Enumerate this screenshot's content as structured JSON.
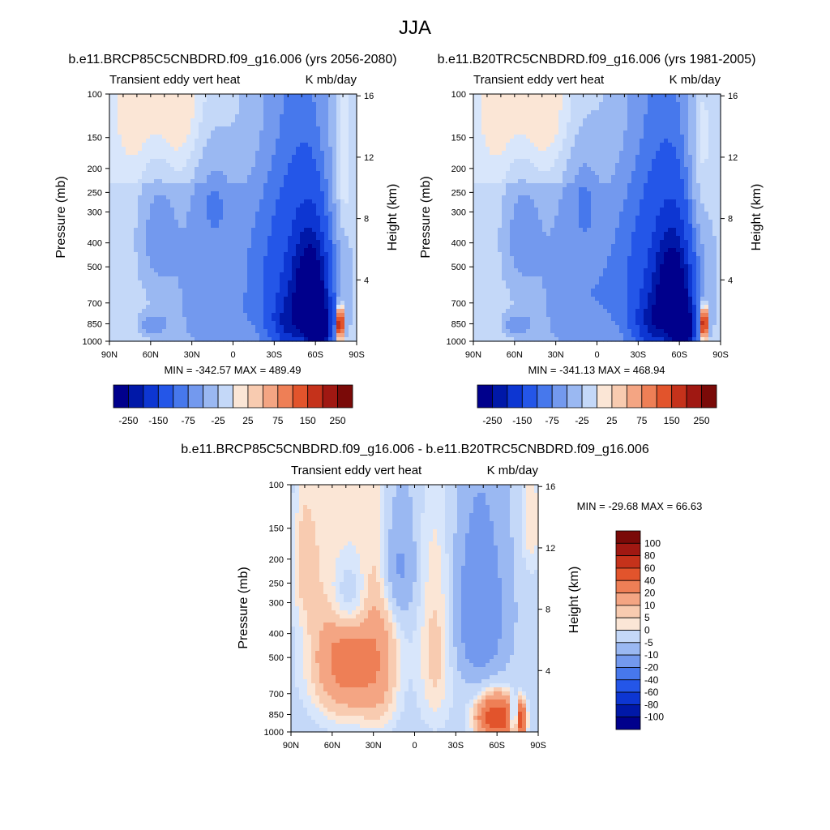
{
  "page_title": "JJA",
  "colors": {
    "ramp": [
      "#00008c",
      "#0018a8",
      "#0d36d2",
      "#2456e8",
      "#4778ec",
      "#7399ee",
      "#9ab8f2",
      "#c4d8f8",
      "#d8e6fb",
      "#fbe6d6",
      "#f8cbb0",
      "#f4a583",
      "#ee7f56",
      "#e2542c",
      "#c5321b",
      "#a01812",
      "#7a0a08"
    ],
    "neutral_light_blue": "#d7e6fb",
    "neutral_light_orange": "#fce5d5"
  },
  "chart_data": [
    {
      "id": "panel-a",
      "type": "heatmap",
      "title": "b.e11.BRCP85C5CNBDRD.f09_g16.006 (yrs 2056-2080)",
      "left_string": "Transient eddy vert heat",
      "right_string": "K mb/day",
      "ylabel": "Pressure (mb)",
      "ylabel_right": "Height (km)",
      "x_tick_labels": [
        "90N",
        "60N",
        "30N",
        "0",
        "30S",
        "60S",
        "90S"
      ],
      "x_range": [
        90,
        -90
      ],
      "y_ticks": [
        100,
        150,
        200,
        250,
        300,
        400,
        500,
        700,
        850,
        1000
      ],
      "y_tick_labels": [
        "100",
        "150",
        "200",
        "250",
        "300",
        "400",
        "500",
        "700",
        "850",
        "1000"
      ],
      "y_range": [
        1000,
        100
      ],
      "height_ticks": [
        4,
        8,
        12,
        16
      ],
      "height_tick_labels": [
        "4",
        "8",
        "12",
        "16"
      ],
      "stats_text": "MIN = -342.57  MAX = 489.49",
      "min": -342.57,
      "max": 489.49,
      "colorbar_labels": [
        "-250",
        "-150",
        "-75",
        "-25",
        "25",
        "75",
        "150",
        "250"
      ],
      "features": [
        {
          "lat": 12,
          "p": 650,
          "value": -60,
          "sx": 26,
          "sy": 480
        },
        {
          "lat": -45,
          "p": 560,
          "value": -120,
          "sx": 20,
          "sy": 420
        },
        {
          "lat": -57,
          "p": 620,
          "value": -230,
          "sx": 9,
          "sy": 210
        },
        {
          "lat": -62,
          "p": 900,
          "value": -290,
          "sx": 6,
          "sy": 130
        },
        {
          "lat": -40,
          "p": 860,
          "value": -100,
          "sx": 9,
          "sy": 150
        },
        {
          "lat": 55,
          "p": 380,
          "value": -45,
          "sx": 9,
          "sy": 140
        },
        {
          "lat": 63,
          "p": 860,
          "value": -45,
          "sx": 4,
          "sy": 55
        },
        {
          "lat": 54,
          "p": 860,
          "value": -45,
          "sx": 4,
          "sy": 55
        },
        {
          "lat": 15,
          "p": 245,
          "value": -25,
          "sx": 9,
          "sy": 90
        },
        {
          "lat": -78,
          "p": 850,
          "value": 240,
          "sx": 1.6,
          "sy": 90
        },
        {
          "lat": -5,
          "p": 520,
          "value": 14,
          "sx": 3,
          "sy": 110
        },
        {
          "lat": 30,
          "p": 120,
          "value": 24,
          "sx": 38,
          "sy": 70
        },
        {
          "lat": -80,
          "p": 200,
          "value": 30,
          "sx": 4,
          "sy": 120
        }
      ]
    },
    {
      "id": "panel-b",
      "type": "heatmap",
      "title": "b.e11.B20TRC5CNBDRD.f09_g16.006 (yrs 1981-2005)",
      "left_string": "Transient eddy vert heat",
      "right_string": "K mb/day",
      "ylabel": "Pressure (mb)",
      "ylabel_right": "Height (km)",
      "x_tick_labels": [
        "90N",
        "60N",
        "30N",
        "0",
        "30S",
        "60S",
        "90S"
      ],
      "x_range": [
        90,
        -90
      ],
      "y_ticks": [
        100,
        150,
        200,
        250,
        300,
        400,
        500,
        700,
        850,
        1000
      ],
      "y_tick_labels": [
        "100",
        "150",
        "200",
        "250",
        "300",
        "400",
        "500",
        "700",
        "850",
        "1000"
      ],
      "y_range": [
        1000,
        100
      ],
      "height_ticks": [
        4,
        8,
        12,
        16
      ],
      "height_tick_labels": [
        "4",
        "8",
        "12",
        "16"
      ],
      "stats_text": "MIN = -341.13  MAX = 468.94",
      "min": -341.13,
      "max": 468.94,
      "colorbar_labels": [
        "-250",
        "-150",
        "-75",
        "-25",
        "25",
        "75",
        "150",
        "250"
      ],
      "features": [
        {
          "lat": 12,
          "p": 650,
          "value": -60,
          "sx": 26,
          "sy": 480
        },
        {
          "lat": -45,
          "p": 560,
          "value": -120,
          "sx": 20,
          "sy": 420
        },
        {
          "lat": -56,
          "p": 640,
          "value": -230,
          "sx": 9,
          "sy": 220
        },
        {
          "lat": -62,
          "p": 900,
          "value": -280,
          "sx": 6,
          "sy": 130
        },
        {
          "lat": -40,
          "p": 860,
          "value": -100,
          "sx": 9,
          "sy": 150
        },
        {
          "lat": 55,
          "p": 380,
          "value": -45,
          "sx": 9,
          "sy": 140
        },
        {
          "lat": 63,
          "p": 860,
          "value": -45,
          "sx": 4,
          "sy": 55
        },
        {
          "lat": 54,
          "p": 860,
          "value": -45,
          "sx": 4,
          "sy": 55
        },
        {
          "lat": 10,
          "p": 240,
          "value": -25,
          "sx": 8,
          "sy": 90
        },
        {
          "lat": -78,
          "p": 850,
          "value": 230,
          "sx": 1.6,
          "sy": 90
        },
        {
          "lat": 30,
          "p": 120,
          "value": 24,
          "sx": 38,
          "sy": 70
        },
        {
          "lat": -75,
          "p": 180,
          "value": 28,
          "sx": 6,
          "sy": 110
        }
      ]
    },
    {
      "id": "panel-diff",
      "type": "heatmap",
      "title": "b.e11.BRCP85C5CNBDRD.f09_g16.006 - b.e11.B20TRC5CNBDRD.f09_g16.006",
      "left_string": "Transient eddy vert heat",
      "right_string": "K mb/day",
      "ylabel": "Pressure (mb)",
      "ylabel_right": "Height (km)",
      "x_tick_labels": [
        "90N",
        "60N",
        "30N",
        "0",
        "30S",
        "60S",
        "90S"
      ],
      "x_range": [
        90,
        -90
      ],
      "y_ticks": [
        100,
        150,
        200,
        250,
        300,
        400,
        500,
        700,
        850,
        1000
      ],
      "y_tick_labels": [
        "100",
        "150",
        "200",
        "250",
        "300",
        "400",
        "500",
        "700",
        "850",
        "1000"
      ],
      "y_range": [
        1000,
        100
      ],
      "height_ticks": [
        4,
        8,
        12,
        16
      ],
      "height_tick_labels": [
        "4",
        "8",
        "12",
        "16"
      ],
      "stats_text": "MIN = -29.68  MAX =  66.63",
      "min": -29.68,
      "max": 66.63,
      "colorbar_labels": [
        "100",
        "80",
        "60",
        "40",
        "20",
        "10",
        "5",
        "0",
        "-5",
        "-10",
        "-20",
        "-40",
        "-60",
        "-80",
        "-100"
      ],
      "features": [
        {
          "lat": 50,
          "p": 470,
          "value": 18,
          "sx": 18,
          "sy": 260
        },
        {
          "lat": 25,
          "p": 560,
          "value": 7,
          "sx": 10,
          "sy": 300
        },
        {
          "lat": -15,
          "p": 480,
          "value": 7,
          "sx": 9,
          "sy": 320
        },
        {
          "lat": -60,
          "p": 880,
          "value": 32,
          "sx": 10,
          "sy": 120
        },
        {
          "lat": -78,
          "p": 900,
          "value": 26,
          "sx": 2.2,
          "sy": 90
        },
        {
          "lat": -72,
          "p": 860,
          "value": -18,
          "sx": 2,
          "sy": 90
        },
        {
          "lat": -48,
          "p": 330,
          "value": -16,
          "sx": 11,
          "sy": 160
        },
        {
          "lat": 48,
          "p": 290,
          "value": -13,
          "sx": 11,
          "sy": 90
        },
        {
          "lat": 12,
          "p": 220,
          "value": -9,
          "sx": 8,
          "sy": 80
        },
        {
          "lat": 80,
          "p": 200,
          "value": 6,
          "sx": 6,
          "sy": 90
        },
        {
          "lat": -85,
          "p": 140,
          "value": 6,
          "sx": 5,
          "sy": 60
        }
      ]
    }
  ]
}
